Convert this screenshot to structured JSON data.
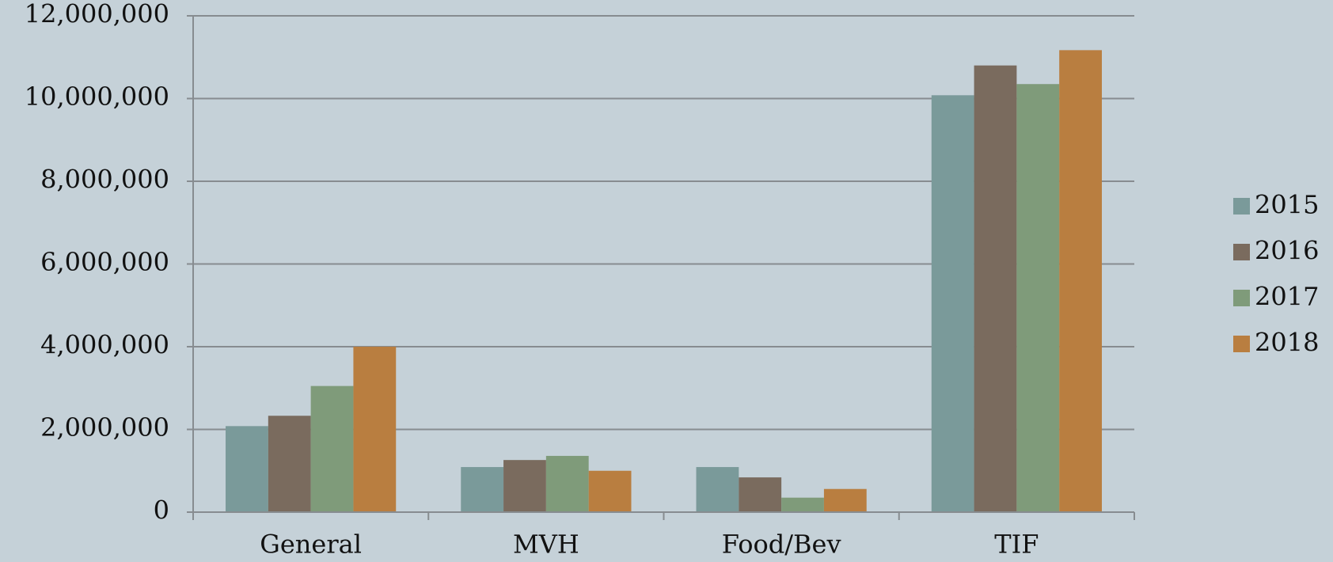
{
  "chart_data": {
    "type": "bar",
    "categories": [
      "General",
      "MVH",
      "Food/Bev",
      "TIF"
    ],
    "series": [
      {
        "name": "2015",
        "color": "#7a9a9a",
        "values": [
          2080000,
          1090000,
          1090000,
          10080000
        ]
      },
      {
        "name": "2016",
        "color": "#7a6b5e",
        "values": [
          2330000,
          1260000,
          840000,
          10800000
        ]
      },
      {
        "name": "2017",
        "color": "#7f9b7a",
        "values": [
          3050000,
          1360000,
          350000,
          10350000
        ]
      },
      {
        "name": "2018",
        "color": "#b97e40",
        "values": [
          4000000,
          1000000,
          560000,
          11170000
        ]
      }
    ],
    "ylim": [
      0,
      12000000
    ],
    "yticks": [
      0,
      {
        "value": 2000000,
        "label": "2,000,000"
      },
      {
        "value": 4000000,
        "label": "4,000,000"
      },
      {
        "value": 6000000,
        "label": "6,000,000"
      },
      {
        "value": 8000000,
        "label": "8,000,000"
      },
      {
        "value": 10000000,
        "label": "10,000,000"
      },
      {
        "value": 12000000,
        "label": "12,000,000"
      }
    ],
    "grid": true,
    "legend": "right"
  }
}
